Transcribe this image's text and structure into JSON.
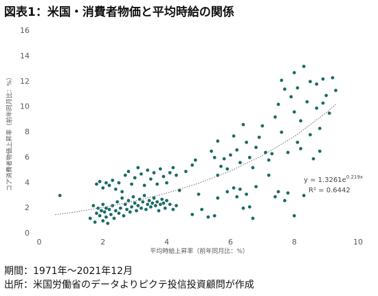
{
  "chart_data": {
    "type": "scatter",
    "title": "図表1：米国・消費者物価と平均時給の関係",
    "xlabel": "平均時給上昇率（前年同月比：%）",
    "ylabel": "コア消費者物価上昇率（前年同月比：%）",
    "footer": [
      "期間：1971年～2021年12月",
      "出所：米国労働省のデータよりピクテ投信投資顧問が作成"
    ],
    "annotation": {
      "equation": "y = 1.3261e",
      "exponent": "0.219x",
      "r2": "R² = 0.6442"
    },
    "xlim": [
      0,
      10
    ],
    "xticks": [
      0,
      2,
      4,
      6,
      8,
      10
    ],
    "ylim": [
      0,
      16
    ],
    "yticks": [
      0,
      2,
      4,
      6,
      8,
      10,
      12,
      14,
      16
    ],
    "grid": false,
    "color": "#1b6b66",
    "x": [
      0.65,
      1.6,
      1.7,
      1.75,
      1.8,
      1.85,
      1.9,
      1.95,
      2.0,
      2.0,
      2.05,
      2.1,
      2.1,
      2.15,
      2.2,
      2.25,
      2.3,
      2.35,
      2.4,
      2.45,
      2.5,
      2.55,
      2.6,
      2.65,
      2.7,
      2.75,
      2.8,
      2.85,
      2.9,
      2.95,
      3.0,
      3.05,
      3.1,
      3.15,
      3.2,
      3.25,
      3.3,
      3.35,
      3.4,
      3.45,
      3.5,
      3.55,
      3.6,
      3.65,
      3.7,
      3.75,
      3.8,
      3.85,
      3.9,
      3.95,
      4.0,
      4.1,
      4.2,
      4.3,
      1.8,
      1.9,
      2.0,
      2.1,
      2.2,
      2.3,
      2.4,
      2.5,
      2.6,
      2.7,
      2.8,
      2.9,
      3.0,
      3.1,
      3.2,
      3.3,
      3.4,
      3.5,
      3.6,
      3.7,
      3.8,
      3.9,
      4.0,
      4.1,
      4.2,
      4.3,
      4.4,
      4.6,
      4.8,
      5.0,
      4.9,
      4.8,
      5.1,
      5.3,
      5.5,
      5.6,
      5.9,
      6.1,
      6.2,
      6.3,
      6.4,
      6.5,
      6.6,
      6.7,
      6.8,
      5.6,
      5.7,
      5.5,
      5.4,
      5.6,
      5.8,
      5.9,
      6.0,
      6.1,
      6.2,
      6.3,
      6.4,
      6.5,
      6.6,
      6.7,
      6.8,
      6.9,
      7.0,
      7.1,
      7.2,
      7.3,
      7.4,
      7.5,
      7.6,
      7.6,
      7.7,
      7.8,
      7.8,
      7.9,
      8.0,
      8.0,
      8.1,
      8.2,
      8.2,
      8.3,
      8.3,
      8.4,
      8.5,
      8.5,
      8.6,
      8.7,
      8.7,
      8.8,
      8.8,
      8.9,
      9.0,
      8.0,
      9.1,
      9.2,
      9.3,
      7.4,
      7.5,
      7.7,
      8.9,
      7.2,
      8.1
    ],
    "y": [
      3.0,
      1.2,
      2.2,
      0.9,
      1.6,
      2.0,
      1.4,
      1.8,
      1.0,
      2.3,
      1.7,
      1.3,
      2.0,
      0.8,
      1.9,
      1.5,
      2.2,
      1.2,
      1.8,
      2.5,
      1.6,
      2.0,
      2.8,
      1.4,
      2.3,
      1.9,
      2.6,
      1.7,
      2.1,
      2.9,
      2.4,
      1.8,
      2.2,
      2.7,
      2.0,
      2.5,
      3.0,
      1.9,
      2.3,
      2.6,
      2.1,
      2.4,
      2.8,
      2.2,
      2.5,
      1.8,
      2.3,
      2.7,
      2.4,
      2.0,
      2.6,
      2.3,
      1.9,
      2.2,
      3.9,
      4.1,
      3.6,
      4.0,
      3.8,
      4.2,
      3.5,
      4.0,
      3.3,
      4.6,
      4.9,
      3.9,
      4.4,
      5.2,
      4.7,
      3.8,
      5.0,
      4.3,
      4.8,
      3.9,
      5.1,
      4.5,
      4.0,
      4.8,
      5.2,
      4.6,
      3.4,
      4.9,
      5.4,
      3.1,
      5.8,
      1.5,
      1.9,
      1.3,
      1.4,
      2.8,
      3.3,
      3.6,
      2.9,
      3.5,
      2.0,
      3.1,
      2.1,
      1.2,
      3.7,
      4.6,
      5.3,
      6.0,
      6.5,
      7.3,
      5.9,
      5.1,
      6.2,
      7.7,
      6.6,
      5.6,
      8.6,
      7.2,
      6.0,
      5.2,
      6.8,
      7.6,
      8.5,
      6.4,
      5.8,
      6.3,
      9.2,
      10.2,
      12.1,
      8.0,
      11.4,
      6.4,
      3.2,
      10.8,
      12.7,
      9.6,
      11.5,
      8.9,
      6.7,
      13.2,
      3.0,
      10.4,
      12.0,
      7.8,
      5.9,
      11.8,
      9.9,
      8.3,
      6.5,
      12.2,
      10.9,
      1.4,
      9.5,
      12.3,
      11.3,
      2.9,
      3.3,
      2.6,
      10.3,
      4.6,
      7.2
    ],
    "trendline": {
      "x": [
        0.5,
        1,
        2,
        3,
        4,
        5,
        6,
        7,
        8,
        9,
        9.3
      ],
      "y": [
        1.49,
        1.65,
        2.06,
        2.56,
        3.19,
        3.97,
        4.94,
        6.15,
        7.66,
        9.54,
        10.2
      ]
    }
  }
}
